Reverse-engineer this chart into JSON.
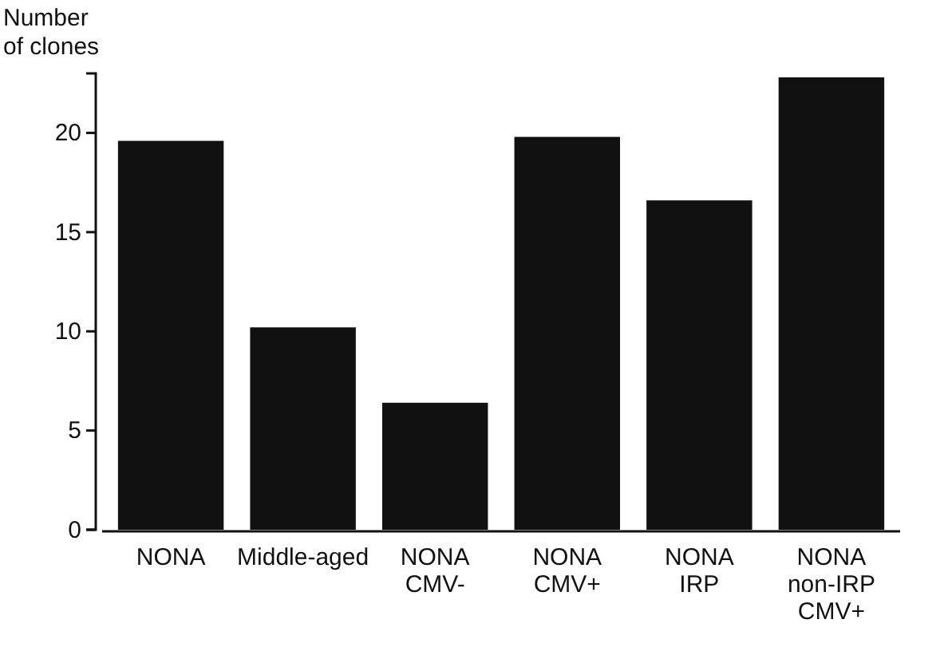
{
  "chart_data": {
    "type": "bar",
    "ylabel": "Number\nof clones",
    "categories": [
      "NONA",
      "Middle-aged",
      "NONA\nCMV-",
      "NONA\nCMV+",
      "NONA\nIRP",
      "NONA\nnon-IRP\nCMV+"
    ],
    "values": [
      19.6,
      10.2,
      6.4,
      19.8,
      16.6,
      22.8
    ],
    "color": "#111111",
    "ylim": [
      0,
      23
    ],
    "yticks": [
      0,
      5,
      10,
      15,
      20
    ],
    "grid": false
  }
}
